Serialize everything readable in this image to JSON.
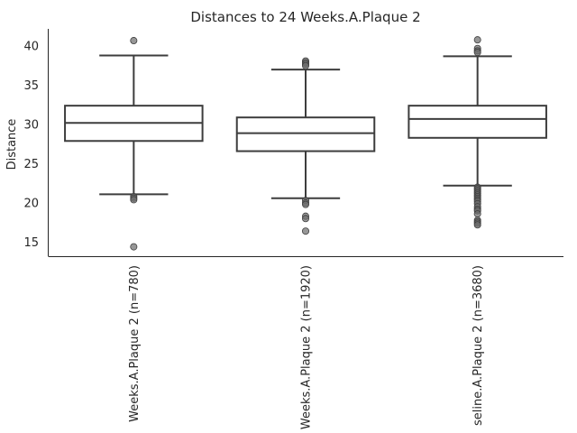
{
  "chart_data": {
    "type": "box",
    "title": "Distances to 24 Weeks.A.Plaque 2",
    "xlabel": "",
    "ylabel": "Distance",
    "ylim": [
      13.2,
      42.2
    ],
    "yticks": [
      15,
      20,
      25,
      30,
      35,
      40
    ],
    "grid": false,
    "categories": [
      "Weeks.A.Plaque 2 (n=780)",
      "Weeks.A.Plaque 2 (n=1920)",
      "seline.A.Plaque 2 (n=3680)"
    ],
    "boxes": [
      {
        "whisker_low": 21.1,
        "q1": 27.9,
        "median": 30.2,
        "q3": 32.4,
        "whisker_high": 38.8,
        "outliers": [
          40.7,
          20.8,
          20.6,
          20.4,
          14.4
        ]
      },
      {
        "whisker_low": 20.6,
        "q1": 26.6,
        "median": 28.9,
        "q3": 30.9,
        "whisker_high": 37.0,
        "outliers": [
          38.1,
          37.9,
          37.7,
          37.5,
          20.3,
          20.0,
          19.8,
          18.3,
          18.0,
          16.4
        ]
      },
      {
        "whisker_low": 22.2,
        "q1": 28.3,
        "median": 30.7,
        "q3": 32.4,
        "whisker_high": 38.7,
        "outliers": [
          40.8,
          39.7,
          39.4,
          39.2,
          22.0,
          21.8,
          21.6,
          21.4,
          21.2,
          21.0,
          20.8,
          20.6,
          20.4,
          20.2,
          19.9,
          19.5,
          19.2,
          19.0,
          18.6,
          17.8,
          17.6,
          17.4,
          17.2
        ]
      }
    ]
  }
}
